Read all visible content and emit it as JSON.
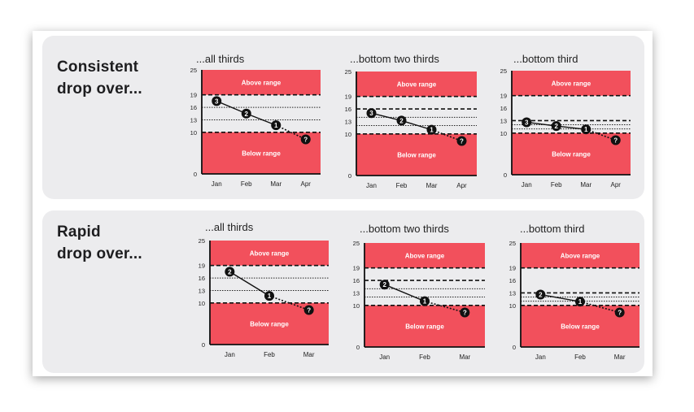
{
  "rows": [
    {
      "title": "Consistent\ndrop over...",
      "charts": [
        {
          "subtitle": "...all thirds"
        },
        {
          "subtitle": "...bottom two thirds"
        },
        {
          "subtitle": "...bottom third"
        }
      ]
    },
    {
      "title": "Rapid\ndrop over...",
      "charts": [
        {
          "subtitle": "...all thirds"
        },
        {
          "subtitle": "...bottom two thirds"
        },
        {
          "subtitle": "...bottom third"
        }
      ]
    }
  ],
  "chart_data": [
    {
      "type": "line",
      "title": "...all thirds",
      "categories": [
        "Jan",
        "Feb",
        "Mar",
        "Apr"
      ],
      "values": [
        17.5,
        14.5,
        11.7,
        8.3
      ],
      "point_labels": [
        "3",
        "2",
        "1",
        "?"
      ],
      "projected_from": 2,
      "ylim": [
        0,
        25
      ],
      "yticks": [
        0,
        10,
        13,
        16,
        19,
        25
      ],
      "bands": {
        "above_label": "Above range",
        "below_label": "Below range",
        "low": 10,
        "high": 19
      },
      "dashed_lines": [
        10,
        19
      ],
      "dotted_lines": [
        13,
        16
      ]
    },
    {
      "type": "line",
      "title": "...bottom two thirds",
      "categories": [
        "Jan",
        "Feb",
        "Mar",
        "Apr"
      ],
      "values": [
        15.0,
        13.2,
        11.0,
        8.3
      ],
      "point_labels": [
        "3",
        "2",
        "1",
        "?"
      ],
      "projected_from": 2,
      "ylim": [
        0,
        25
      ],
      "yticks": [
        0,
        10,
        13,
        16,
        19,
        25
      ],
      "bands": {
        "above_label": "Above range",
        "below_label": "Below range",
        "low": 10,
        "high": 19
      },
      "dashed_lines": [
        10,
        16,
        19
      ],
      "dotted_lines": [
        12,
        14
      ]
    },
    {
      "type": "line",
      "title": "...bottom third",
      "categories": [
        "Jan",
        "Feb",
        "Mar",
        "Apr"
      ],
      "values": [
        12.6,
        11.7,
        10.9,
        8.3
      ],
      "point_labels": [
        "3",
        "2",
        "1",
        "?"
      ],
      "projected_from": 2,
      "ylim": [
        0,
        25
      ],
      "yticks": [
        0,
        10,
        13,
        16,
        19,
        25
      ],
      "bands": {
        "above_label": "Above range",
        "below_label": "Below range",
        "low": 10,
        "high": 19
      },
      "dashed_lines": [
        10,
        13,
        19
      ],
      "dotted_lines": [
        11,
        12
      ]
    },
    {
      "type": "line",
      "title": "...all thirds",
      "categories": [
        "Jan",
        "Feb",
        "Mar"
      ],
      "values": [
        17.5,
        11.7,
        8.3
      ],
      "point_labels": [
        "2",
        "1",
        "?"
      ],
      "projected_from": 1,
      "ylim": [
        0,
        25
      ],
      "yticks": [
        0,
        10,
        13,
        16,
        19,
        25
      ],
      "bands": {
        "above_label": "Above range",
        "below_label": "Below range",
        "low": 10,
        "high": 19
      },
      "dashed_lines": [
        10,
        19
      ],
      "dotted_lines": [
        13,
        16
      ]
    },
    {
      "type": "line",
      "title": "...bottom two thirds",
      "categories": [
        "Jan",
        "Feb",
        "Mar"
      ],
      "values": [
        15.0,
        11.0,
        8.3
      ],
      "point_labels": [
        "2",
        "1",
        "?"
      ],
      "projected_from": 1,
      "ylim": [
        0,
        25
      ],
      "yticks": [
        0,
        10,
        13,
        16,
        19,
        25
      ],
      "bands": {
        "above_label": "Above range",
        "below_label": "Below range",
        "low": 10,
        "high": 19
      },
      "dashed_lines": [
        10,
        16,
        19
      ],
      "dotted_lines": [
        12,
        14
      ]
    },
    {
      "type": "line",
      "title": "...bottom third",
      "categories": [
        "Jan",
        "Feb",
        "Mar"
      ],
      "values": [
        12.6,
        10.9,
        8.3
      ],
      "point_labels": [
        "2",
        "1",
        "?"
      ],
      "projected_from": 1,
      "ylim": [
        0,
        25
      ],
      "yticks": [
        0,
        10,
        13,
        16,
        19,
        25
      ],
      "bands": {
        "above_label": "Above range",
        "below_label": "Below range",
        "low": 10,
        "high": 19
      },
      "dashed_lines": [
        10,
        13,
        19
      ],
      "dotted_lines": [
        11,
        12
      ]
    }
  ],
  "colors": {
    "band": "#f2505c",
    "band_text": "#ffffff",
    "line": "#111111",
    "marker": "#111111",
    "marker_text": "#ffffff",
    "panel": "#ececee"
  }
}
